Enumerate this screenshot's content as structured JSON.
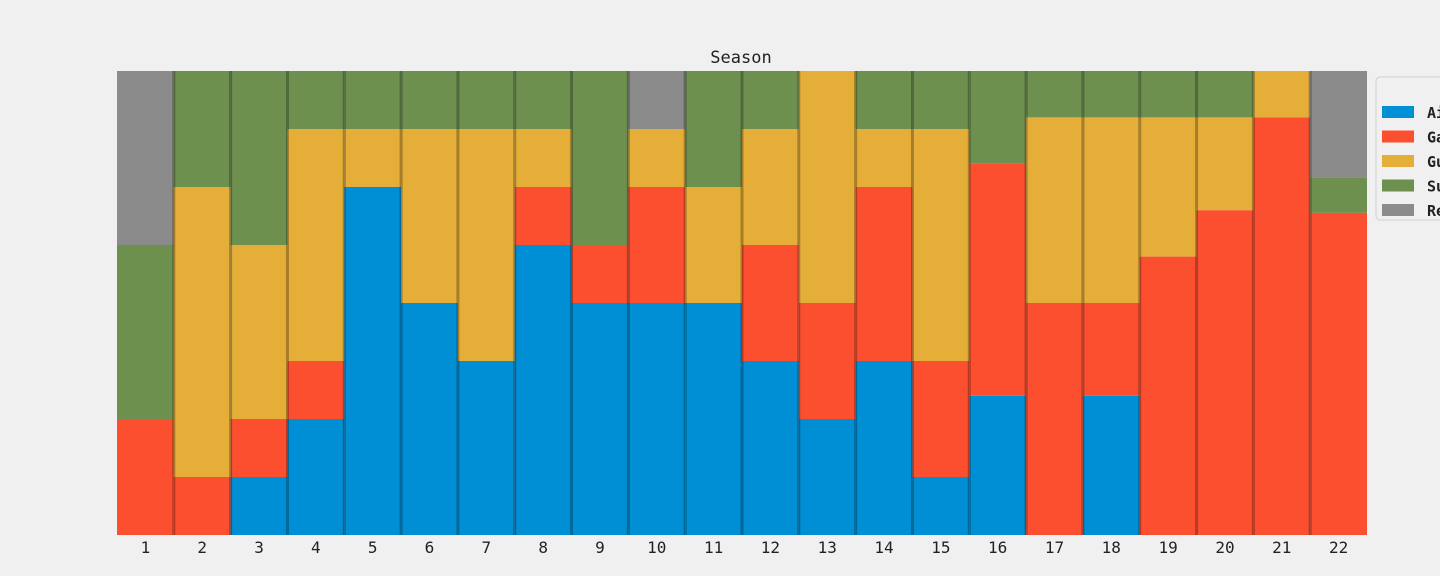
{
  "chart_data": {
    "type": "bar",
    "stacked": true,
    "normalized": true,
    "title": "Season",
    "xlabel": "",
    "ylabel": "",
    "ylim": [
      0,
      1
    ],
    "grid": false,
    "legend_position": "right",
    "categories": [
      "1",
      "2",
      "3",
      "4",
      "5",
      "6",
      "7",
      "8",
      "9",
      "10",
      "11",
      "12",
      "13",
      "14",
      "15",
      "16",
      "17",
      "18",
      "19",
      "20",
      "21",
      "22"
    ],
    "series": [
      {
        "name": "Ai",
        "color": "#008fd5",
        "values": [
          0,
          0,
          0.125,
          0.25,
          0.75,
          0.5,
          0.375,
          0.625,
          0.5,
          0.5,
          0.5,
          0.375,
          0.25,
          0.375,
          0.125,
          0.3,
          0,
          0.3,
          0,
          0,
          0,
          0
        ]
      },
      {
        "name": "Ga",
        "color": "#fc4f30",
        "values": [
          0.25,
          0.125,
          0.125,
          0.125,
          0,
          0,
          0,
          0.125,
          0.125,
          0.25,
          0,
          0.25,
          0.25,
          0.375,
          0.25,
          0.5,
          0.5,
          0.2,
          0.6,
          0.7,
          0.9,
          0.7
        ]
      },
      {
        "name": "Gu",
        "color": "#e5ae38",
        "values": [
          0,
          0.625,
          0.375,
          0.5,
          0.125,
          0.375,
          0.5,
          0.125,
          0,
          0.125,
          0.25,
          0.25,
          0.5,
          0.125,
          0.5,
          0,
          0.4,
          0.4,
          0.3,
          0.2,
          0.1,
          0
        ]
      },
      {
        "name": "Su",
        "color": "#6d904f",
        "values": [
          0.375,
          0.25,
          0.375,
          0.125,
          0.125,
          0.125,
          0.125,
          0.125,
          0.375,
          0,
          0.25,
          0.125,
          0,
          0.125,
          0.125,
          0.2,
          0.1,
          0.1,
          0.1,
          0.1,
          0,
          0.077
        ]
      },
      {
        "name": "Re",
        "color": "#8b8b8b",
        "values": [
          0.375,
          0,
          0,
          0,
          0,
          0,
          0,
          0,
          0,
          0.125,
          0,
          0,
          0,
          0,
          0,
          0,
          0,
          0,
          0,
          0,
          0,
          0.231
        ]
      }
    ]
  }
}
